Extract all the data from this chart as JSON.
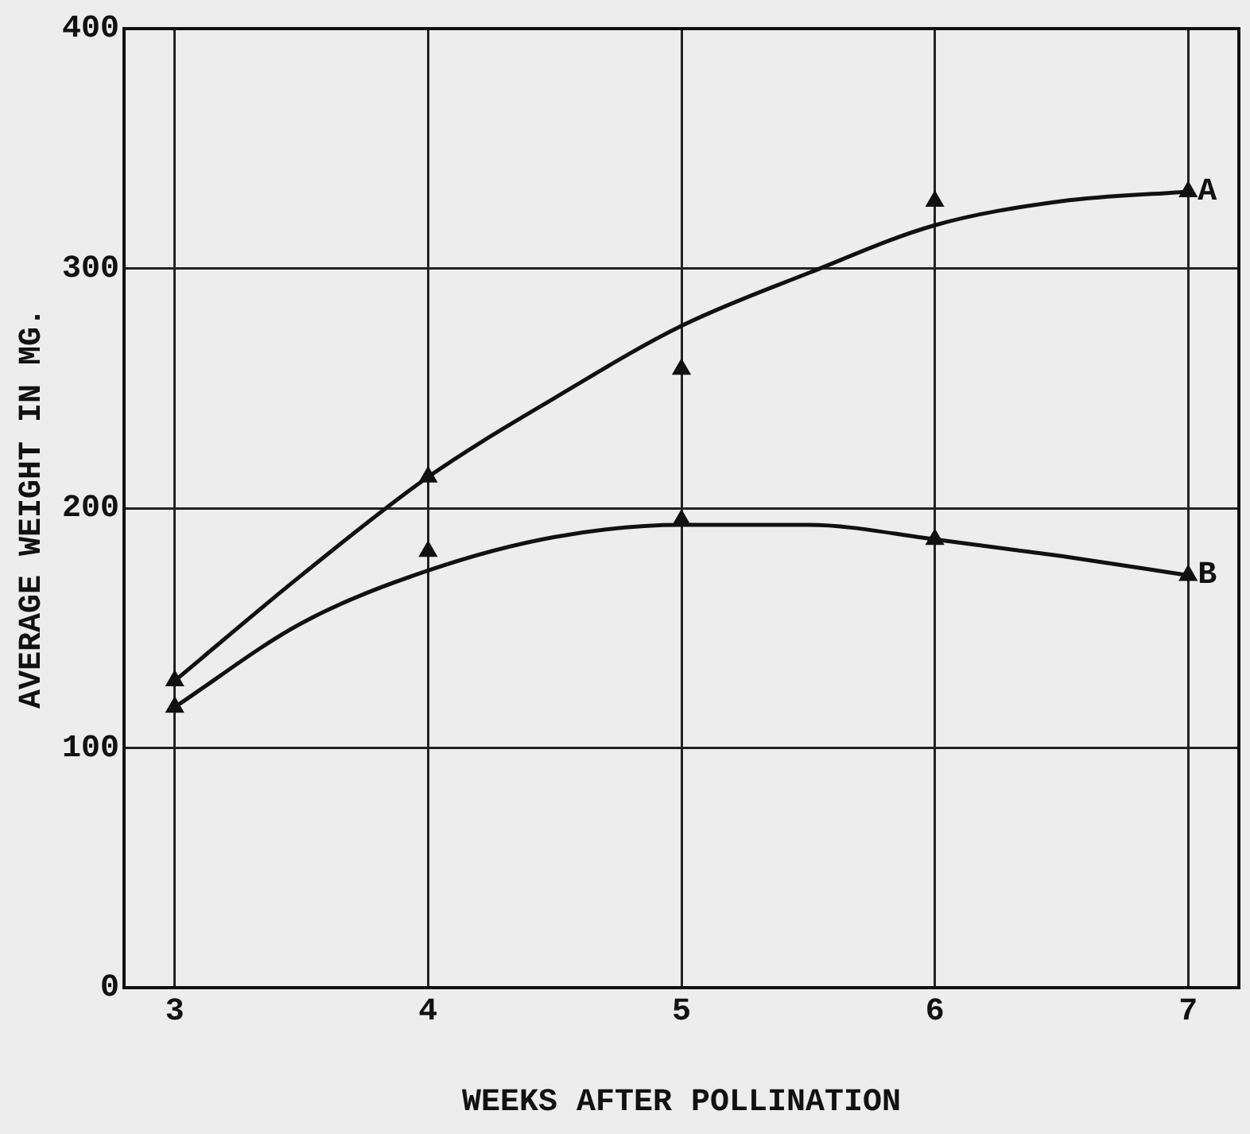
{
  "chart_data": {
    "type": "line",
    "xlabel": "WEEKS AFTER POLLINATION",
    "ylabel": "AVERAGE WEIGHT IN MG.",
    "xlim": [
      2.8,
      7.2
    ],
    "xticks": [
      3,
      4,
      5,
      6,
      7
    ],
    "ylim": [
      0,
      400
    ],
    "yticks": [
      0,
      100,
      200,
      300,
      400
    ],
    "grid": true,
    "legend": false,
    "marker": "none",
    "line_style": "solid",
    "series": [
      {
        "name": "A",
        "color": "#111111",
        "x": [
          3,
          3.5,
          4,
          4.5,
          5,
          5.5,
          6,
          6.5,
          7
        ],
        "values": [
          128,
          172,
          213,
          246,
          276,
          298,
          318,
          328,
          332
        ]
      },
      {
        "name": "B",
        "color": "#111111",
        "x": [
          3,
          3.5,
          4,
          4.5,
          5,
          5.5,
          6,
          6.5,
          7
        ],
        "values": [
          117,
          152,
          174,
          188,
          193,
          193,
          187,
          180,
          172
        ]
      },
      {
        "type": "scatter",
        "marker": "triangle",
        "color": "#111111",
        "x": [
          3,
          4,
          5,
          6,
          7
        ],
        "values": [
          128,
          213,
          258,
          328,
          332
        ]
      },
      {
        "type": "scatter",
        "marker": "triangle",
        "color": "#111111",
        "x": [
          3,
          4,
          5,
          6,
          7
        ],
        "values": [
          117,
          182,
          195,
          187,
          172
        ]
      }
    ]
  }
}
